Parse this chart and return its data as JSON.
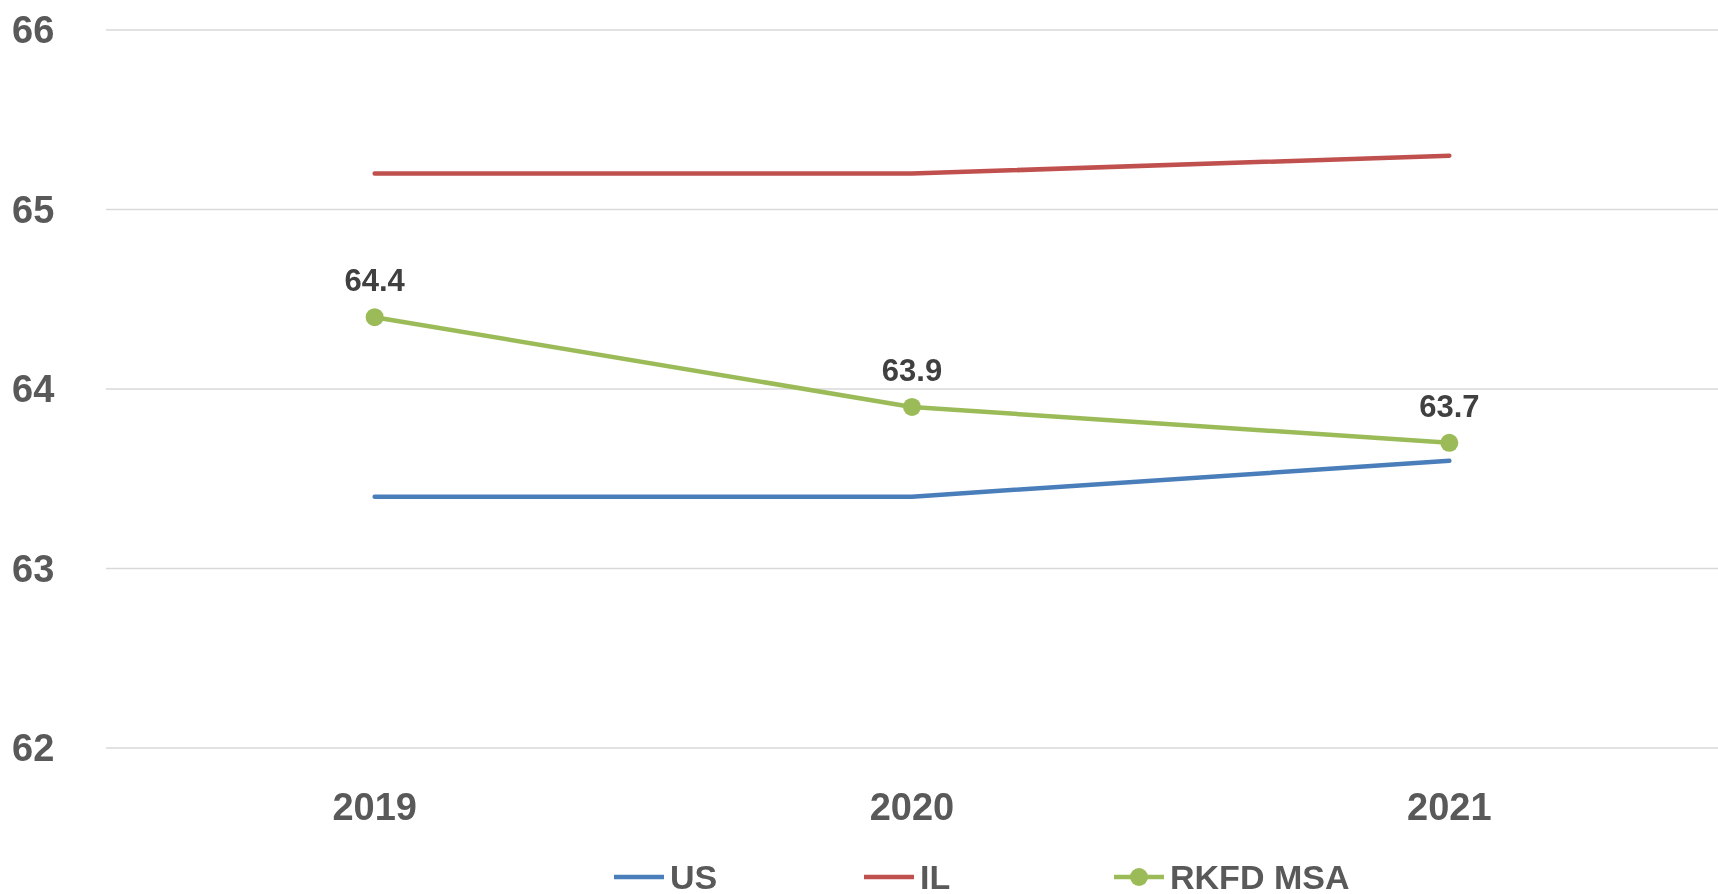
{
  "chart_data": {
    "type": "line",
    "categories": [
      "2019",
      "2020",
      "2021"
    ],
    "series": [
      {
        "name": "US",
        "color": "#4a7ebb",
        "values": [
          63.4,
          63.4,
          63.6
        ],
        "marker": "none"
      },
      {
        "name": "IL",
        "color": "#c0504d",
        "values": [
          65.2,
          65.2,
          65.3
        ],
        "marker": "none"
      },
      {
        "name": "RKFD MSA",
        "color": "#9bbb59",
        "values": [
          64.4,
          63.9,
          63.7
        ],
        "marker": "circle",
        "value_labels": [
          "64.4",
          "63.9",
          "63.7"
        ]
      }
    ],
    "ylim": [
      62,
      66
    ],
    "yticks": [
      62,
      63,
      64,
      65,
      66
    ],
    "grid": "y",
    "legend": "bottom"
  }
}
